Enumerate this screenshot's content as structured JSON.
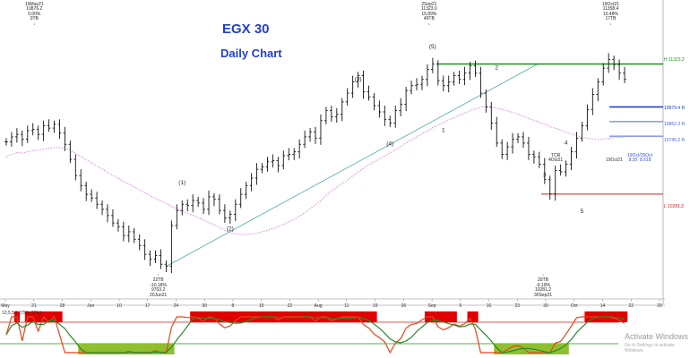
{
  "chart_data": {
    "type": "line",
    "title": "EGX 30",
    "subtitle": "Daily Chart",
    "x_ticks": [
      "May",
      "21",
      "28",
      "Jun",
      "10",
      "17",
      "24",
      "30",
      "8",
      "15",
      "22",
      "Aug",
      "11",
      "19",
      "26",
      "Sep",
      "9",
      "16",
      "23",
      "30",
      "Oct",
      "14",
      "22",
      "29"
    ],
    "price_ohlc_close": [
      10700,
      10740,
      10760,
      10720,
      10790,
      10800,
      10760,
      10830,
      10810,
      10840,
      10770,
      10680,
      10560,
      10430,
      10350,
      10280,
      10250,
      10200,
      10160,
      10110,
      10050,
      10020,
      9950,
      9980,
      9920,
      9870,
      9800,
      9760,
      9790,
      9720,
      9703,
      10030,
      10150,
      10200,
      10190,
      10230,
      10210,
      10160,
      10260,
      10240,
      10150,
      10090,
      10120,
      10200,
      10280,
      10350,
      10410,
      10480,
      10500,
      10540,
      10550,
      10510,
      10590,
      10600,
      10620,
      10680,
      10740,
      10780,
      10730,
      10870,
      10950,
      10900,
      10920,
      11020,
      11090,
      11180,
      11230,
      11100,
      11060,
      10990,
      10940,
      10880,
      10850,
      10950,
      11000,
      11110,
      11150,
      11160,
      11200,
      11280,
      11323,
      11190,
      11150,
      11180,
      11230,
      11200,
      11250,
      11310,
      11250,
      11090,
      10980,
      10850,
      10690,
      10600,
      10660,
      10720,
      10740,
      10690,
      10600,
      10580,
      10520,
      10400,
      10283,
      10470,
      10460,
      10520,
      10620,
      10730,
      10830,
      10960,
      11080,
      11180,
      11290,
      11360,
      11320,
      11250,
      11200
    ],
    "wave_labels": [
      "(1)",
      "(2)",
      "(3)",
      "(4)",
      "(5)",
      "1",
      "2",
      "3",
      "4",
      "5"
    ],
    "levels": [
      {
        "label": "H 11323.2",
        "color": "#1d8f1d"
      },
      {
        "label": "10979.4 R",
        "color": "#1436c8"
      },
      {
        "label": "10862.3 R",
        "color": "#4b63e0"
      },
      {
        "label": "10745.2 R",
        "color": "#4b63e0"
      },
      {
        "label": "L 10281.2",
        "color": "#d81c1c"
      }
    ],
    "info_boxes": [
      "19May21\n10876.2\n0.00%\n0TB\n↓",
      "2Sep21\n11323.0\n15.89%\n49TB\n↓",
      "19Oct21\n11358.4\n10.48%\n17TB\n↓",
      "↑\n22TB\n-10.18%\n9703.2\n20Jun21",
      "↑\n20TB\n-9.19%\n10281.2\n30Sep21"
    ],
    "misc_labels": [
      "TCR\n4Oct21",
      "19Oct21",
      "19Oct/25Oct\n8.30  8.618"
    ],
    "oscillator_label": "13,5,5,5 (75%-25%)"
  },
  "watermark": {
    "line1": "Activate Windows",
    "line2": "Go to Settings to activate Windows."
  }
}
